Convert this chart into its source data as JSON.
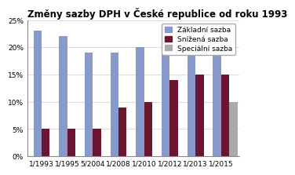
{
  "title": "Změny sazby DPH v České republice od roku 1993",
  "categories": [
    "1/1993",
    "1/1995",
    "5/2004",
    "1/2008",
    "1/2010",
    "1/2012",
    "1/2013",
    "1/2015"
  ],
  "zakladni": [
    23,
    22,
    19,
    19,
    20,
    20,
    21,
    21
  ],
  "snizena": [
    5,
    5,
    5,
    9,
    10,
    14,
    15,
    15
  ],
  "specialni": [
    0,
    0,
    0,
    0,
    0,
    0,
    0,
    10
  ],
  "color_zakladni": "#8899CC",
  "color_snizena": "#6B1530",
  "color_specialni": "#AAAAAA",
  "ylim": [
    0,
    25
  ],
  "yticks": [
    0,
    5,
    10,
    15,
    20,
    25
  ],
  "ytick_labels": [
    "0%",
    "5%",
    "10%",
    "15%",
    "20%",
    "25%"
  ],
  "legend_labels": [
    "Základní sazba",
    "Snížená sazba",
    "Speciální sazba"
  ],
  "background_color": "#FFFFFF",
  "title_fontsize": 8.5,
  "axis_fontsize": 6.5,
  "legend_fontsize": 6.5
}
